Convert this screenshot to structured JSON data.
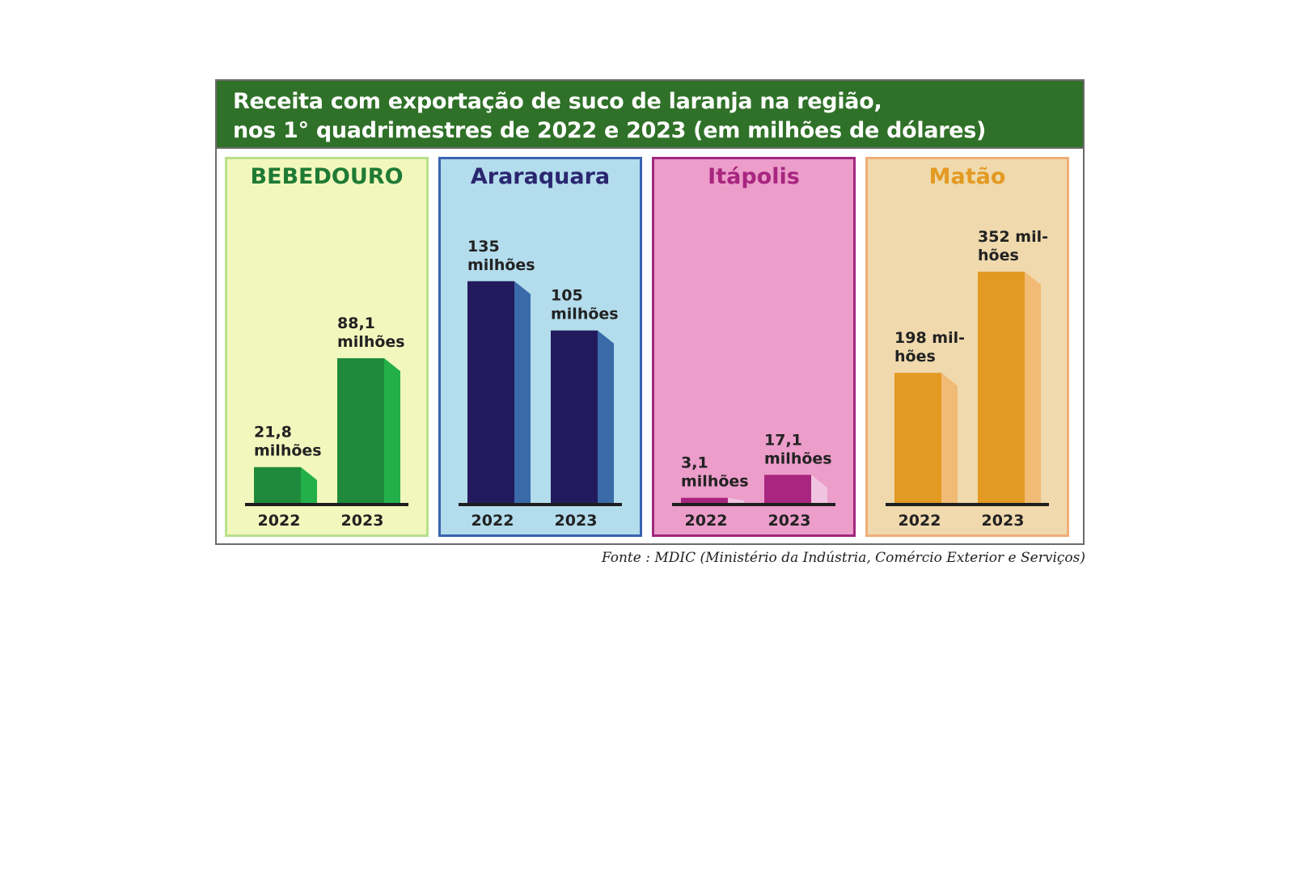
{
  "title": {
    "line1": "Receita com exportação de suco de laranja na região,",
    "line2": "nos 1° quadrimestres de 2022 e 2023 (em milhões de dólares)"
  },
  "source": "Fonte : MDIC (Ministério da Indústria, Comércio Exterior e Serviços)",
  "chart_data": [
    {
      "type": "bar",
      "title": "BEBEDOURO",
      "categories": [
        "2022",
        "2023"
      ],
      "values": [
        21.8,
        88.1
      ],
      "data_labels": [
        [
          "21,8",
          "milhões"
        ],
        [
          "88,1",
          "milhões"
        ]
      ],
      "ylim": [
        0,
        160
      ],
      "colors": {
        "face": "#1f8a3c",
        "side": "#23b04a",
        "background": "#f2f8bd",
        "border": "#b8e08a",
        "title": "#1f7a35"
      }
    },
    {
      "type": "bar",
      "title": "Araraquara",
      "categories": [
        "2022",
        "2023"
      ],
      "values": [
        135,
        105
      ],
      "data_labels": [
        [
          "135",
          "milhões"
        ],
        [
          "105",
          "milhões"
        ]
      ],
      "ylim": [
        0,
        160
      ],
      "colors": {
        "face": "#231a5e",
        "side": "#3a6aa8",
        "background": "#b3dcec",
        "border": "#3a62b0",
        "title": "#2a2670"
      }
    },
    {
      "type": "bar",
      "title": "Itápolis",
      "categories": [
        "2022",
        "2023"
      ],
      "values": [
        3.1,
        17.1
      ],
      "data_labels": [
        [
          "3,1",
          "milhões"
        ],
        [
          "17,1",
          "milhões"
        ]
      ],
      "ylim": [
        0,
        160
      ],
      "colors": {
        "face": "#a8267f",
        "side": "#f0c4e0",
        "background": "#ec9dca",
        "border": "#a0287e",
        "title": "#a8267f"
      }
    },
    {
      "type": "bar",
      "title": "Matão",
      "categories": [
        "2022",
        "2023"
      ],
      "values": [
        198,
        352
      ],
      "data_labels": [
        [
          "198 mil-",
          "hões"
        ],
        [
          "352 mil-",
          "hões"
        ]
      ],
      "ylim": [
        0,
        400
      ],
      "colors": {
        "face": "#e39a22",
        "side": "#f1bb75",
        "background": "#efd9ad",
        "border": "#f0ae78",
        "title": "#e39a22"
      }
    }
  ]
}
